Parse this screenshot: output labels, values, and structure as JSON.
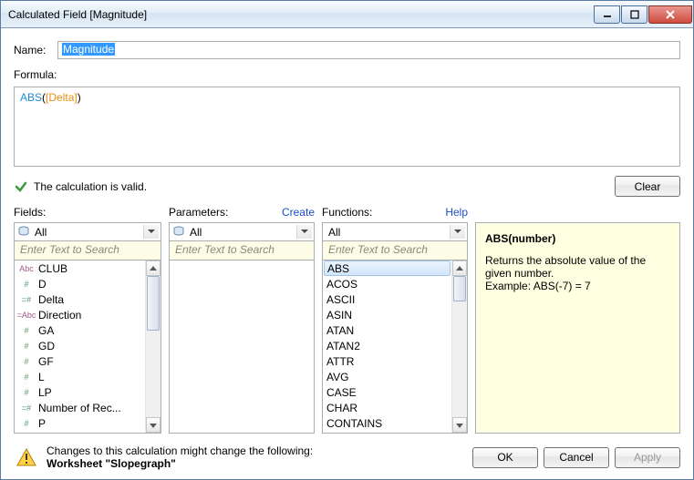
{
  "window": {
    "title": "Calculated Field [Magnitude]"
  },
  "labels": {
    "name": "Name:",
    "formula": "Formula:",
    "valid": "The calculation is valid.",
    "clear": "Clear",
    "fields": "Fields:",
    "parameters": "Parameters:",
    "create": "Create",
    "functions": "Functions:",
    "help": "Help",
    "all": "All",
    "search_placeholder": "Enter Text to Search",
    "ok": "OK",
    "cancel": "Cancel",
    "apply": "Apply"
  },
  "name_value": "Magnitude",
  "formula_tokens": {
    "fn": "ABS",
    "open": "(",
    "field": "[Delta]",
    "close": ")"
  },
  "fields_list": [
    {
      "type": "Abc",
      "type_class": "str",
      "label": "CLUB"
    },
    {
      "type": "#",
      "type_class": "num",
      "label": "D"
    },
    {
      "type": "=#",
      "type_class": "calc",
      "label": "Delta"
    },
    {
      "type": "=Abc",
      "type_class": "str",
      "label": "Direction"
    },
    {
      "type": "#",
      "type_class": "num",
      "label": "GA"
    },
    {
      "type": "#",
      "type_class": "num",
      "label": "GD"
    },
    {
      "type": "#",
      "type_class": "num",
      "label": "GF"
    },
    {
      "type": "#",
      "type_class": "num",
      "label": "L"
    },
    {
      "type": "#",
      "type_class": "num",
      "label": "LP"
    },
    {
      "type": "=#",
      "type_class": "calc",
      "label": "Number of Rec..."
    },
    {
      "type": "#",
      "type_class": "num",
      "label": "P"
    }
  ],
  "functions_list": [
    {
      "label": "ABS",
      "selected": true
    },
    {
      "label": "ACOS"
    },
    {
      "label": "ASCII"
    },
    {
      "label": "ASIN"
    },
    {
      "label": "ATAN"
    },
    {
      "label": "ATAN2"
    },
    {
      "label": "ATTR"
    },
    {
      "label": "AVG"
    },
    {
      "label": "CASE"
    },
    {
      "label": "CHAR"
    },
    {
      "label": "CONTAINS"
    }
  ],
  "help_panel": {
    "signature": "ABS(number)",
    "desc": "Returns the absolute value of the given number.",
    "example": "Example: ABS(-7) = 7"
  },
  "footer": {
    "msg_line1": "Changes to this calculation might change the following:",
    "msg_line2": "Worksheet \"Slopegraph\""
  },
  "colors": {
    "title_border": "#5a7ca0",
    "close_red": "#cf4b3e",
    "link_blue": "#1a4ec8",
    "search_bg": "#fdfde7",
    "help_bg": "#ffffe1",
    "sel_highlight": "#3399ff",
    "fn_color": "#1f8dd6",
    "field_color": "#e58f13"
  }
}
